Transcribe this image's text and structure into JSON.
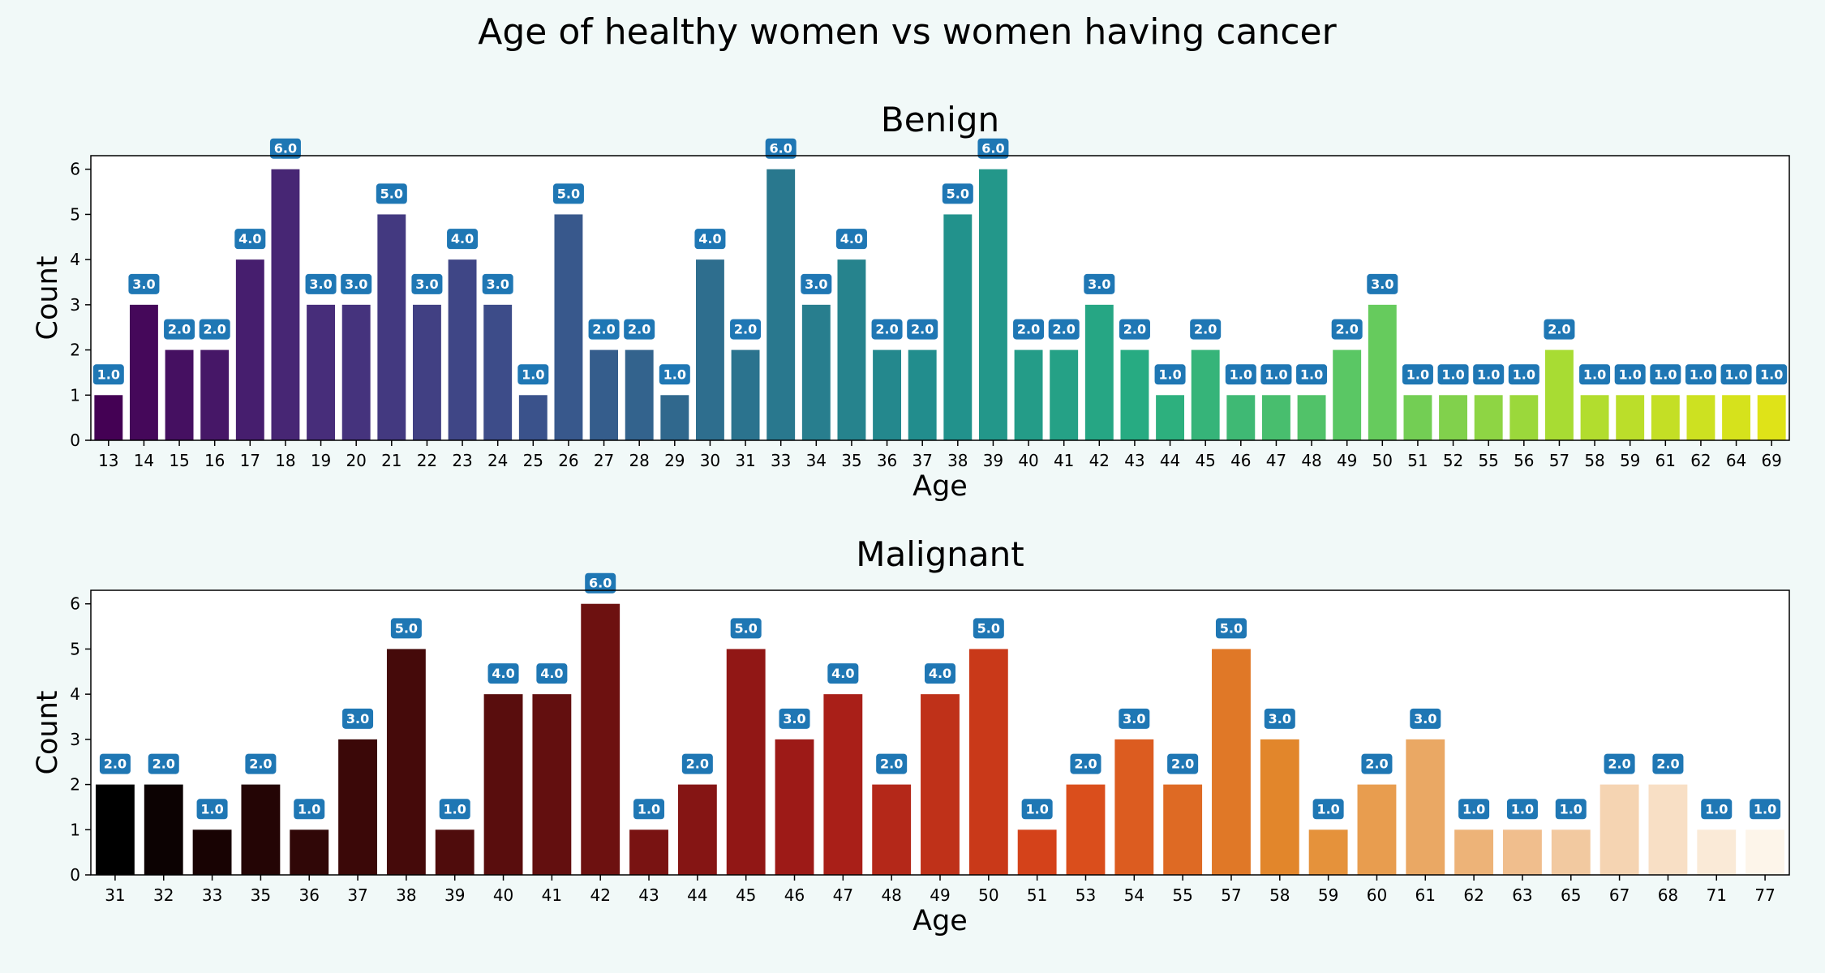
{
  "figure": {
    "title": "Age of healthy women vs  women having cancer"
  },
  "chart_data": [
    {
      "type": "bar",
      "title": "Benign",
      "xlabel": "Age",
      "ylabel": "Count",
      "ylim": [
        0,
        6.3
      ],
      "yticks": [
        0,
        1,
        2,
        3,
        4,
        5,
        6
      ],
      "palette": "viridis",
      "label_bg": "#1f77b4",
      "categories": [
        "13",
        "14",
        "15",
        "16",
        "17",
        "18",
        "19",
        "20",
        "21",
        "22",
        "23",
        "24",
        "25",
        "26",
        "27",
        "28",
        "29",
        "30",
        "31",
        "33",
        "34",
        "35",
        "36",
        "37",
        "38",
        "39",
        "40",
        "41",
        "42",
        "43",
        "44",
        "45",
        "46",
        "47",
        "48",
        "49",
        "50",
        "51",
        "52",
        "55",
        "56",
        "57",
        "58",
        "59",
        "61",
        "62",
        "64",
        "69"
      ],
      "values": [
        1,
        3,
        2,
        2,
        4,
        6,
        3,
        3,
        5,
        3,
        4,
        3,
        1,
        5,
        2,
        2,
        1,
        4,
        2,
        6,
        3,
        4,
        2,
        2,
        5,
        6,
        2,
        2,
        3,
        2,
        1,
        2,
        1,
        1,
        1,
        2,
        3,
        1,
        1,
        1,
        1,
        2,
        1,
        1,
        1,
        1,
        1,
        1
      ],
      "labels": [
        "1.0",
        "3.0",
        "2.0",
        "2.0",
        "4.0",
        "6.0",
        "3.0",
        "3.0",
        "5.0",
        "3.0",
        "4.0",
        "3.0",
        "1.0",
        "5.0",
        "2.0",
        "2.0",
        "1.0",
        "4.0",
        "2.0",
        "6.0",
        "3.0",
        "4.0",
        "2.0",
        "2.0",
        "5.0",
        "6.0",
        "2.0",
        "2.0",
        "3.0",
        "2.0",
        "1.0",
        "2.0",
        "1.0",
        "1.0",
        "1.0",
        "2.0",
        "3.0",
        "1.0",
        "1.0",
        "1.0",
        "1.0",
        "2.0",
        "1.0",
        "1.0",
        "1.0",
        "1.0",
        "1.0",
        "1.0"
      ]
    },
    {
      "type": "bar",
      "title": "Malignant",
      "xlabel": "Age",
      "ylabel": "Count",
      "ylim": [
        0,
        6.3
      ],
      "yticks": [
        0,
        1,
        2,
        3,
        4,
        5,
        6
      ],
      "palette": "gist_heat",
      "label_bg": "#1f77b4",
      "categories": [
        "31",
        "32",
        "33",
        "35",
        "36",
        "37",
        "38",
        "39",
        "40",
        "41",
        "42",
        "43",
        "44",
        "45",
        "46",
        "47",
        "48",
        "49",
        "50",
        "51",
        "53",
        "54",
        "55",
        "57",
        "58",
        "59",
        "60",
        "61",
        "62",
        "63",
        "65",
        "67",
        "68",
        "71",
        "77"
      ],
      "values": [
        2,
        2,
        1,
        2,
        1,
        3,
        5,
        1,
        4,
        4,
        6,
        1,
        2,
        5,
        3,
        4,
        2,
        4,
        5,
        1,
        2,
        3,
        2,
        5,
        3,
        1,
        2,
        3,
        1,
        1,
        1,
        2,
        2,
        1,
        1
      ],
      "labels": [
        "2.0",
        "2.0",
        "1.0",
        "2.0",
        "1.0",
        "3.0",
        "5.0",
        "1.0",
        "4.0",
        "4.0",
        "6.0",
        "1.0",
        "2.0",
        "5.0",
        "3.0",
        "4.0",
        "2.0",
        "4.0",
        "5.0",
        "1.0",
        "2.0",
        "3.0",
        "2.0",
        "5.0",
        "3.0",
        "1.0",
        "2.0",
        "3.0",
        "1.0",
        "1.0",
        "1.0",
        "2.0",
        "2.0",
        "1.0",
        "1.0"
      ]
    }
  ]
}
